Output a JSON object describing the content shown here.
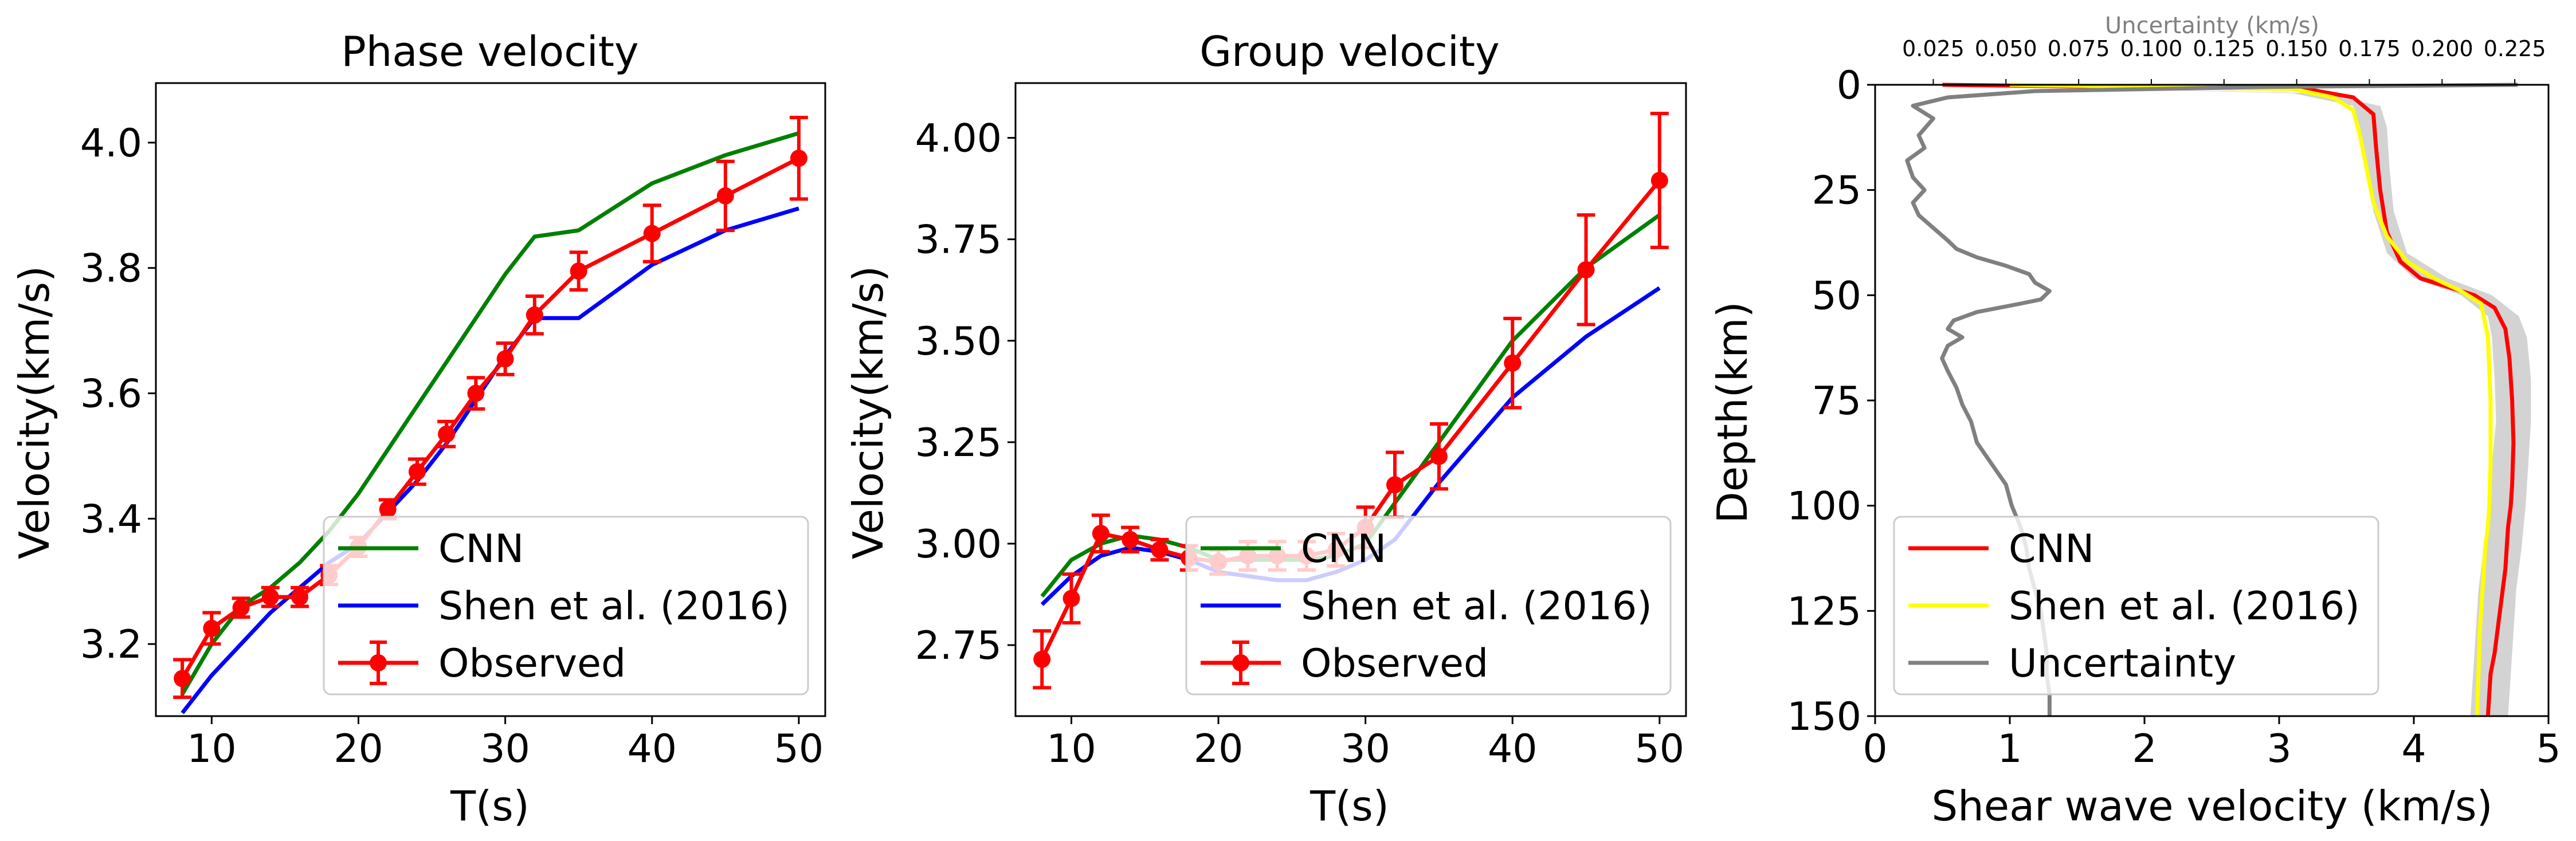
{
  "chart_data": [
    {
      "type": "line",
      "title": "Phase velocity",
      "xlabel": "T(s)",
      "ylabel": "Velocity(km/s)",
      "xlim": [
        6.2,
        51.8
      ],
      "ylim": [
        3.085,
        4.095
      ],
      "xticks": [
        10,
        20,
        30,
        40,
        50
      ],
      "yticks": [
        3.2,
        3.4,
        3.6,
        3.8,
        4.0
      ],
      "ytick_labels": [
        "3.2",
        "3.4",
        "3.6",
        "3.8",
        "4.0"
      ],
      "legend_position": "lower-right",
      "grid": false,
      "series": [
        {
          "name": "CNN",
          "color": "#008000",
          "style": "line",
          "x": [
            8,
            10,
            12,
            14,
            16,
            18,
            20,
            22,
            24,
            26,
            28,
            30,
            32,
            35,
            40,
            45,
            50
          ],
          "y": [
            3.12,
            3.2,
            3.26,
            3.29,
            3.33,
            3.38,
            3.44,
            3.51,
            3.58,
            3.65,
            3.72,
            3.79,
            3.85,
            3.86,
            3.935,
            3.98,
            4.015
          ]
        },
        {
          "name": "Shen et al. (2016)",
          "color": "#0000ff",
          "style": "line",
          "x": [
            8,
            10,
            12,
            14,
            16,
            18,
            20,
            22,
            24,
            26,
            28,
            30,
            32,
            35,
            40,
            45,
            50
          ],
          "y": [
            3.09,
            3.15,
            3.2,
            3.25,
            3.29,
            3.33,
            3.36,
            3.41,
            3.46,
            3.52,
            3.59,
            3.66,
            3.72,
            3.72,
            3.805,
            3.86,
            3.895
          ]
        },
        {
          "name": "Observed",
          "color": "#ff0000",
          "style": "errorbar",
          "x": [
            8,
            10,
            12,
            14,
            16,
            18,
            20,
            22,
            24,
            26,
            28,
            30,
            32,
            35,
            40,
            45,
            50
          ],
          "y": [
            3.145,
            3.225,
            3.258,
            3.275,
            3.275,
            3.31,
            3.355,
            3.415,
            3.475,
            3.535,
            3.6,
            3.655,
            3.725,
            3.795,
            3.855,
            3.915,
            3.975
          ],
          "err": [
            0.03,
            0.025,
            0.015,
            0.015,
            0.015,
            0.015,
            0.015,
            0.015,
            0.02,
            0.02,
            0.025,
            0.025,
            0.03,
            0.03,
            0.045,
            0.055,
            0.065
          ]
        }
      ]
    },
    {
      "type": "line",
      "title": "Group velocity",
      "xlabel": "T(s)",
      "ylabel": "Velocity(km/s)",
      "xlim": [
        6.2,
        51.8
      ],
      "ylim": [
        2.575,
        4.135
      ],
      "xticks": [
        10,
        20,
        30,
        40,
        50
      ],
      "yticks": [
        2.75,
        3.0,
        3.25,
        3.5,
        3.75,
        4.0
      ],
      "ytick_labels": [
        "2.75",
        "3.00",
        "3.25",
        "3.50",
        "3.75",
        "4.00"
      ],
      "legend_position": "lower-right",
      "grid": false,
      "series": [
        {
          "name": "CNN",
          "color": "#008000",
          "style": "line",
          "x": [
            8,
            10,
            12,
            14,
            16,
            18,
            20,
            22,
            24,
            26,
            28,
            30,
            32,
            35,
            40,
            45,
            50
          ],
          "y": [
            2.87,
            2.96,
            3.0,
            3.02,
            3.01,
            2.99,
            2.96,
            2.96,
            2.96,
            2.96,
            2.97,
            3.0,
            3.1,
            3.25,
            3.5,
            3.68,
            3.81
          ]
        },
        {
          "name": "Shen et al. (2016)",
          "color": "#0000ff",
          "style": "line",
          "x": [
            8,
            10,
            12,
            14,
            16,
            18,
            20,
            22,
            24,
            26,
            28,
            30,
            32,
            35,
            40,
            45,
            50
          ],
          "y": [
            2.85,
            2.92,
            2.97,
            2.99,
            2.98,
            2.96,
            2.93,
            2.92,
            2.91,
            2.91,
            2.93,
            2.96,
            3.01,
            3.15,
            3.36,
            3.51,
            3.63
          ]
        },
        {
          "name": "Observed",
          "color": "#ff0000",
          "style": "errorbar",
          "x": [
            8,
            10,
            12,
            14,
            16,
            18,
            20,
            22,
            24,
            26,
            28,
            30,
            32,
            35,
            40,
            45,
            50
          ],
          "y": [
            2.715,
            2.865,
            3.025,
            3.01,
            2.985,
            2.965,
            2.955,
            2.97,
            2.97,
            2.97,
            2.985,
            3.04,
            3.145,
            3.215,
            3.445,
            3.675,
            3.895
          ],
          "err": [
            0.07,
            0.06,
            0.045,
            0.03,
            0.025,
            0.03,
            0.03,
            0.035,
            0.035,
            0.035,
            0.04,
            0.05,
            0.08,
            0.08,
            0.11,
            0.135,
            0.165
          ]
        }
      ]
    },
    {
      "type": "line",
      "xlabel": "Shear wave velocity (km/s)",
      "ylabel": "Depth(km)",
      "xlim": [
        0,
        5
      ],
      "ylim": [
        150,
        0
      ],
      "xticks": [
        0,
        1,
        2,
        3,
        4,
        5
      ],
      "yticks": [
        0,
        25,
        50,
        75,
        100,
        125,
        150
      ],
      "top_xlabel": "Uncertainty (km/s)",
      "top_xlim": [
        0.005,
        0.2366
      ],
      "top_xticks": [
        0.025,
        0.05,
        0.075,
        0.1,
        0.125,
        0.15,
        0.175,
        0.2,
        0.225
      ],
      "top_xtick_labels": [
        "0.025",
        "0.050",
        "0.075",
        "0.100",
        "0.125",
        "0.150",
        "0.175",
        "0.200",
        "0.225"
      ],
      "legend_position": "lower-left",
      "grid": false,
      "series": [
        {
          "name": "CNN",
          "color": "#ff0000",
          "style": "line",
          "axis": "bottom",
          "x": [
            0.5,
            3.2,
            3.55,
            3.7,
            3.72,
            3.75,
            3.8,
            3.9,
            4.05,
            4.25,
            4.45,
            4.6,
            4.68,
            4.71,
            4.73,
            4.74,
            4.73,
            4.72,
            4.7,
            4.69,
            4.68,
            4.66,
            4.64,
            4.62,
            4.6,
            4.57,
            4.55
          ],
          "y": [
            0,
            1,
            3,
            7,
            15,
            25,
            35,
            42,
            46,
            48,
            50,
            53,
            58,
            65,
            75,
            85,
            95,
            100,
            105,
            110,
            115,
            120,
            125,
            130,
            135,
            140,
            150
          ]
        },
        {
          "name": "Shen et al. (2016)",
          "color": "#ffff00",
          "style": "line",
          "axis": "bottom",
          "x": [
            1.0,
            3.1,
            3.4,
            3.55,
            3.6,
            3.65,
            3.7,
            3.8,
            3.95,
            4.15,
            4.35,
            4.5,
            4.55,
            4.57,
            4.57,
            4.56,
            4.55,
            4.53,
            4.52,
            4.51,
            4.5,
            4.49,
            4.48,
            4.47
          ],
          "y": [
            0,
            1,
            3,
            6,
            12,
            20,
            28,
            36,
            42,
            46,
            49,
            52,
            60,
            75,
            90,
            100,
            105,
            110,
            115,
            120,
            125,
            130,
            140,
            150
          ]
        },
        {
          "name": "Uncertainty",
          "color": "#808080",
          "style": "line",
          "axis": "top",
          "x": [
            0.226,
            0.14,
            0.06,
            0.03,
            0.018,
            0.025,
            0.02,
            0.022,
            0.016,
            0.018,
            0.022,
            0.018,
            0.02,
            0.025,
            0.03,
            0.033,
            0.04,
            0.05,
            0.058,
            0.06,
            0.065,
            0.062,
            0.055,
            0.04,
            0.032,
            0.03,
            0.035,
            0.03,
            0.028,
            0.03,
            0.033,
            0.035,
            0.038,
            0.04,
            0.045,
            0.05,
            0.052,
            0.055,
            0.057,
            0.058,
            0.06,
            0.062,
            0.063,
            0.064,
            0.064,
            0.065,
            0.065
          ],
          "y": [
            0,
            0.5,
            1.5,
            3,
            5,
            8,
            12,
            15,
            18,
            22,
            25,
            28,
            31,
            34,
            37,
            39,
            41,
            43,
            45,
            47,
            49,
            51,
            52,
            54,
            56,
            58,
            60,
            62,
            65,
            68,
            72,
            76,
            80,
            85,
            90,
            95,
            100,
            105,
            110,
            115,
            120,
            125,
            130,
            135,
            140,
            145,
            150
          ]
        }
      ],
      "band": {
        "name": "uncertainty-band",
        "color": "#d3d3d3",
        "y": [
          0,
          2,
          5,
          10,
          20,
          30,
          40,
          46,
          50,
          55,
          60,
          70,
          80,
          90,
          100,
          110,
          120,
          130,
          140,
          150
        ],
        "lo": [
          0.5,
          3.1,
          3.55,
          3.6,
          3.65,
          3.7,
          3.8,
          4.0,
          4.35,
          4.55,
          4.58,
          4.6,
          4.61,
          4.58,
          4.55,
          4.52,
          4.48,
          4.46,
          4.44,
          4.42
        ],
        "hi": [
          0.5,
          3.3,
          3.75,
          3.8,
          3.82,
          3.85,
          3.95,
          4.25,
          4.58,
          4.78,
          4.84,
          4.87,
          4.87,
          4.85,
          4.83,
          4.8,
          4.76,
          4.74,
          4.72,
          4.7
        ]
      }
    }
  ]
}
